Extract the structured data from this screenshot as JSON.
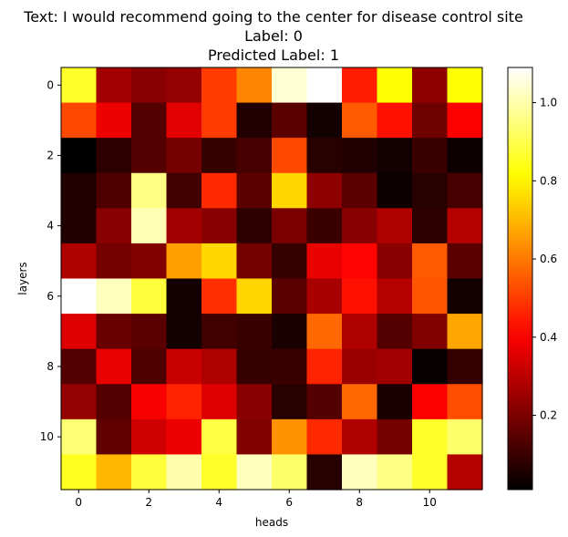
{
  "chart_data": {
    "type": "heatmap",
    "title_lines": [
      "Text: I would recommend going to the center for disease control site",
      "Label: 0",
      "Predicted Label: 1"
    ],
    "xlabel": "heads",
    "ylabel": "layers",
    "x_ticks": [
      0,
      2,
      4,
      6,
      8,
      10
    ],
    "y_ticks": [
      0,
      2,
      4,
      6,
      8,
      10
    ],
    "colormap": "hot",
    "colorbar": {
      "vmin": 0.01,
      "vmax": 1.09,
      "ticks": [
        0.2,
        0.4,
        0.6,
        0.8,
        1.0
      ],
      "tick_labels": [
        "0.2",
        "0.4",
        "0.6",
        "0.8",
        "1.0"
      ]
    },
    "values": [
      [
        0.86,
        0.26,
        0.22,
        0.24,
        0.5,
        0.62,
        1.04,
        1.09,
        0.45,
        0.82,
        0.23,
        0.82
      ],
      [
        0.52,
        0.38,
        0.14,
        0.36,
        0.5,
        0.06,
        0.15,
        0.04,
        0.55,
        0.43,
        0.18,
        0.4
      ],
      [
        0.01,
        0.08,
        0.14,
        0.19,
        0.09,
        0.12,
        0.52,
        0.07,
        0.06,
        0.04,
        0.1,
        0.03
      ],
      [
        0.06,
        0.13,
        0.96,
        0.11,
        0.47,
        0.15,
        0.75,
        0.23,
        0.15,
        0.03,
        0.07,
        0.12
      ],
      [
        0.06,
        0.22,
        1.01,
        0.26,
        0.22,
        0.08,
        0.2,
        0.1,
        0.22,
        0.28,
        0.08,
        0.29
      ],
      [
        0.28,
        0.19,
        0.21,
        0.66,
        0.75,
        0.19,
        0.09,
        0.37,
        0.41,
        0.22,
        0.55,
        0.15
      ],
      [
        1.09,
        1.02,
        0.88,
        0.04,
        0.48,
        0.75,
        0.15,
        0.27,
        0.43,
        0.29,
        0.54,
        0.04
      ],
      [
        0.35,
        0.17,
        0.15,
        0.04,
        0.11,
        0.1,
        0.05,
        0.57,
        0.28,
        0.14,
        0.21,
        0.67
      ],
      [
        0.14,
        0.37,
        0.13,
        0.32,
        0.28,
        0.09,
        0.1,
        0.46,
        0.25,
        0.26,
        0.02,
        0.09
      ],
      [
        0.24,
        0.14,
        0.39,
        0.46,
        0.35,
        0.22,
        0.07,
        0.14,
        0.57,
        0.05,
        0.4,
        0.53
      ],
      [
        0.94,
        0.16,
        0.33,
        0.38,
        0.89,
        0.21,
        0.64,
        0.47,
        0.28,
        0.19,
        0.86,
        0.93
      ],
      [
        0.85,
        0.7,
        0.88,
        1.0,
        0.86,
        1.02,
        0.93,
        0.07,
        1.02,
        0.96,
        0.86,
        0.29
      ]
    ]
  }
}
